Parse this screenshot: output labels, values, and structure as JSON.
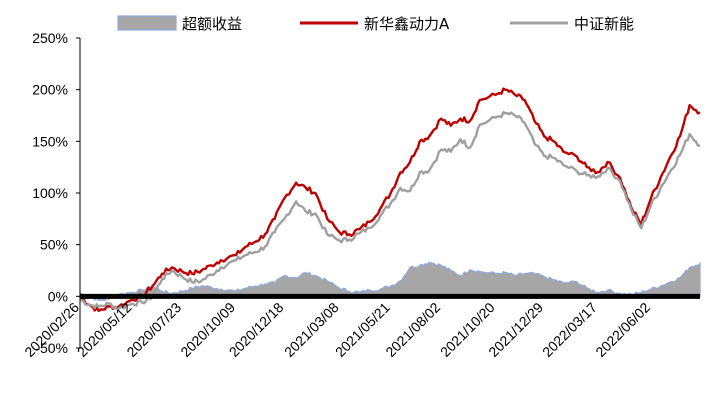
{
  "chart_data": {
    "type": "area",
    "title": "",
    "xlabel": "",
    "ylabel": "",
    "ylim": [
      -0.5,
      2.5
    ],
    "y_ticks": [
      -0.5,
      0,
      0.5,
      1,
      1.5,
      2,
      2.5
    ],
    "y_tick_labels": [
      "-50%",
      "0%",
      "50%",
      "100%",
      "150%",
      "200%",
      "250%"
    ],
    "x_range": [
      "2020-02-26",
      "2022-08-12"
    ],
    "x_ticks": [
      "2020-02-26",
      "2020-05-12",
      "2020-07-23",
      "2020-10-09",
      "2020-12-18",
      "2021-03-08",
      "2021-05-21",
      "2021-08-02",
      "2021-10-20",
      "2021-12-29",
      "2022-03-17",
      "2022-06-02"
    ],
    "x_tick_labels": [
      "2020/02/26",
      "2020/05/12",
      "2020/07/23",
      "2020/10/09",
      "2020/12/18",
      "2021/03/08",
      "2021/05/21",
      "2021/08/02",
      "2021/10/20",
      "2021/12/29",
      "2022/03/17",
      "2022/06/02"
    ],
    "legend_position": "top",
    "grid": false,
    "series": [
      {
        "name": "超额收益",
        "type": "area",
        "color": "#a6a6a6",
        "edge_color": "#8fa8e0",
        "x": [
          "2020-02-26",
          "2020-03-10",
          "2020-03-24",
          "2020-04-08",
          "2020-04-22",
          "2020-05-12",
          "2020-05-26",
          "2020-06-10",
          "2020-06-24",
          "2020-07-08",
          "2020-07-23",
          "2020-08-06",
          "2020-08-20",
          "2020-09-03",
          "2020-09-17",
          "2020-10-09",
          "2020-10-23",
          "2020-11-06",
          "2020-11-20",
          "2020-12-04",
          "2020-12-18",
          "2021-01-04",
          "2021-01-18",
          "2021-02-01",
          "2021-02-18",
          "2021-03-08",
          "2021-03-22",
          "2021-04-06",
          "2021-04-20",
          "2021-05-06",
          "2021-05-21",
          "2021-06-04",
          "2021-06-18",
          "2021-07-02",
          "2021-07-16",
          "2021-08-02",
          "2021-08-16",
          "2021-08-30",
          "2021-09-13",
          "2021-09-27",
          "2021-10-20",
          "2021-11-03",
          "2021-11-17",
          "2021-12-01",
          "2021-12-15",
          "2021-12-29",
          "2022-01-12",
          "2022-01-26",
          "2022-02-15",
          "2022-03-01",
          "2022-03-17",
          "2022-03-31",
          "2022-04-18",
          "2022-05-05",
          "2022-05-19",
          "2022-06-02",
          "2022-06-16",
          "2022-06-30",
          "2022-07-14",
          "2022-07-28",
          "2022-08-12"
        ],
        "values": [
          0.03,
          0.0,
          -0.04,
          -0.03,
          0.02,
          0.04,
          0.06,
          0.1,
          0.05,
          0.03,
          0.05,
          0.08,
          0.1,
          0.09,
          0.07,
          0.05,
          0.08,
          0.1,
          0.12,
          0.13,
          0.2,
          0.18,
          0.23,
          0.2,
          0.15,
          0.08,
          0.05,
          0.04,
          0.06,
          0.07,
          0.1,
          0.15,
          0.28,
          0.3,
          0.33,
          0.3,
          0.25,
          0.2,
          0.26,
          0.24,
          0.22,
          0.23,
          0.2,
          0.22,
          0.22,
          0.19,
          0.16,
          0.13,
          0.14,
          0.08,
          0.04,
          0.06,
          0.03,
          0.02,
          0.04,
          0.07,
          0.1,
          0.14,
          0.18,
          0.28,
          0.32
        ]
      },
      {
        "name": "新华鑫动力A",
        "type": "line",
        "color": "#c00000",
        "x": [
          "2020-02-26",
          "2020-03-10",
          "2020-03-24",
          "2020-04-08",
          "2020-04-22",
          "2020-05-12",
          "2020-05-26",
          "2020-06-10",
          "2020-06-24",
          "2020-07-08",
          "2020-07-23",
          "2020-08-06",
          "2020-08-20",
          "2020-09-03",
          "2020-09-17",
          "2020-10-09",
          "2020-10-23",
          "2020-11-06",
          "2020-11-20",
          "2020-12-04",
          "2020-12-18",
          "2021-01-04",
          "2021-01-18",
          "2021-02-01",
          "2021-02-18",
          "2021-03-08",
          "2021-03-22",
          "2021-04-06",
          "2021-04-20",
          "2021-05-06",
          "2021-05-21",
          "2021-06-04",
          "2021-06-18",
          "2021-07-02",
          "2021-07-16",
          "2021-08-02",
          "2021-08-16",
          "2021-08-30",
          "2021-09-13",
          "2021-09-27",
          "2021-10-20",
          "2021-11-03",
          "2021-11-17",
          "2021-12-01",
          "2021-12-15",
          "2021-12-29",
          "2022-01-12",
          "2022-01-26",
          "2022-02-15",
          "2022-03-01",
          "2022-03-17",
          "2022-03-31",
          "2022-04-18",
          "2022-05-05",
          "2022-05-19",
          "2022-06-02",
          "2022-06-16",
          "2022-06-30",
          "2022-07-14",
          "2022-07-28",
          "2022-08-12"
        ],
        "values": [
          0.0,
          -0.08,
          -0.14,
          -0.1,
          -0.1,
          -0.03,
          0.0,
          0.1,
          0.22,
          0.28,
          0.24,
          0.22,
          0.25,
          0.3,
          0.35,
          0.4,
          0.48,
          0.53,
          0.6,
          0.75,
          0.95,
          1.1,
          1.05,
          1.0,
          0.75,
          0.62,
          0.6,
          0.65,
          0.72,
          0.85,
          1.0,
          1.2,
          1.3,
          1.5,
          1.55,
          1.72,
          1.65,
          1.72,
          1.7,
          1.9,
          1.95,
          2.0,
          1.95,
          1.9,
          1.7,
          1.55,
          1.5,
          1.4,
          1.35,
          1.25,
          1.2,
          1.3,
          1.15,
          0.85,
          0.7,
          0.95,
          1.15,
          1.35,
          1.55,
          1.85,
          1.78
        ]
      },
      {
        "name": "中证新能",
        "type": "line",
        "color": "#a0a0a0",
        "x": [
          "2020-02-26",
          "2020-03-10",
          "2020-03-24",
          "2020-04-08",
          "2020-04-22",
          "2020-05-12",
          "2020-05-26",
          "2020-06-10",
          "2020-06-24",
          "2020-07-08",
          "2020-07-23",
          "2020-08-06",
          "2020-08-20",
          "2020-09-03",
          "2020-09-17",
          "2020-10-09",
          "2020-10-23",
          "2020-11-06",
          "2020-11-20",
          "2020-12-04",
          "2020-12-18",
          "2021-01-04",
          "2021-01-18",
          "2021-02-01",
          "2021-02-18",
          "2021-03-08",
          "2021-03-22",
          "2021-04-06",
          "2021-04-20",
          "2021-05-06",
          "2021-05-21",
          "2021-06-04",
          "2021-06-18",
          "2021-07-02",
          "2021-07-16",
          "2021-08-02",
          "2021-08-16",
          "2021-08-30",
          "2021-09-13",
          "2021-09-27",
          "2021-10-20",
          "2021-11-03",
          "2021-11-17",
          "2021-12-01",
          "2021-12-15",
          "2021-12-29",
          "2022-01-12",
          "2022-01-26",
          "2022-02-15",
          "2022-03-01",
          "2022-03-17",
          "2022-03-31",
          "2022-04-18",
          "2022-05-05",
          "2022-05-19",
          "2022-06-02",
          "2022-06-16",
          "2022-06-30",
          "2022-07-14",
          "2022-07-28",
          "2022-08-12"
        ],
        "values": [
          -0.03,
          -0.08,
          -0.1,
          -0.07,
          -0.12,
          -0.07,
          -0.06,
          0.0,
          0.17,
          0.25,
          0.19,
          0.14,
          0.15,
          0.21,
          0.28,
          0.35,
          0.4,
          0.43,
          0.48,
          0.62,
          0.75,
          0.92,
          0.82,
          0.8,
          0.6,
          0.54,
          0.55,
          0.61,
          0.66,
          0.78,
          0.9,
          1.05,
          1.02,
          1.2,
          1.22,
          1.42,
          1.4,
          1.52,
          1.44,
          1.66,
          1.73,
          1.77,
          1.75,
          1.68,
          1.48,
          1.36,
          1.34,
          1.27,
          1.21,
          1.17,
          1.16,
          1.24,
          1.12,
          0.83,
          0.66,
          0.88,
          1.05,
          1.21,
          1.37,
          1.57,
          1.46
        ]
      }
    ]
  }
}
